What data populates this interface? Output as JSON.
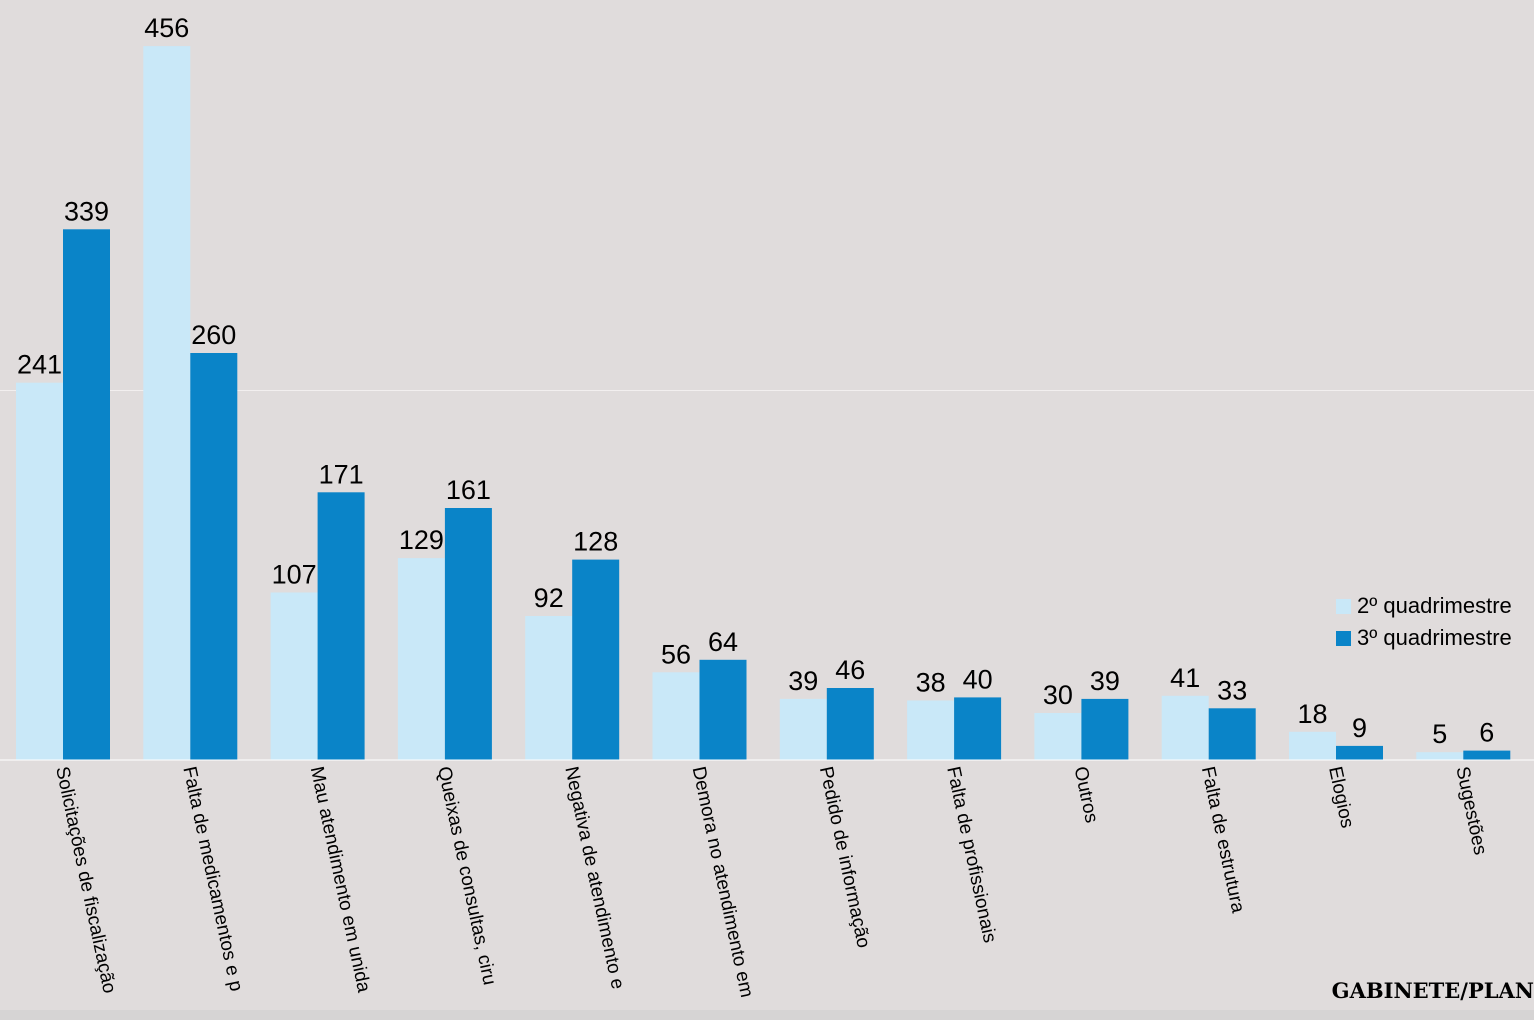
{
  "chart_data": {
    "type": "bar",
    "categories": [
      "Solicitações de fiscalização",
      "Falta de medicamentos e p",
      "Mau atendimento em unida",
      "Queixas de consultas, ciru",
      "Negativa de atendimento e",
      "Demora no atendimento em",
      "Pedido de informação",
      "Falta de profissionais",
      "Outros",
      "Falta de estrutura",
      "Elogios",
      "Sugestões"
    ],
    "series": [
      {
        "name": "2º quadrimestre",
        "color": "#c9e8f8",
        "values": [
          241,
          456,
          107,
          129,
          92,
          56,
          39,
          38,
          30,
          41,
          18,
          5
        ]
      },
      {
        "name": "3º quadrimestre",
        "color": "#0a84c8",
        "values": [
          339,
          260,
          171,
          161,
          128,
          64,
          46,
          40,
          39,
          33,
          9,
          6
        ]
      }
    ],
    "ylim": [
      0,
      470
    ],
    "grid": "single horizontal line at 236",
    "legend_position": "right"
  },
  "footer": {
    "text": "GABINETE/PLAN"
  }
}
